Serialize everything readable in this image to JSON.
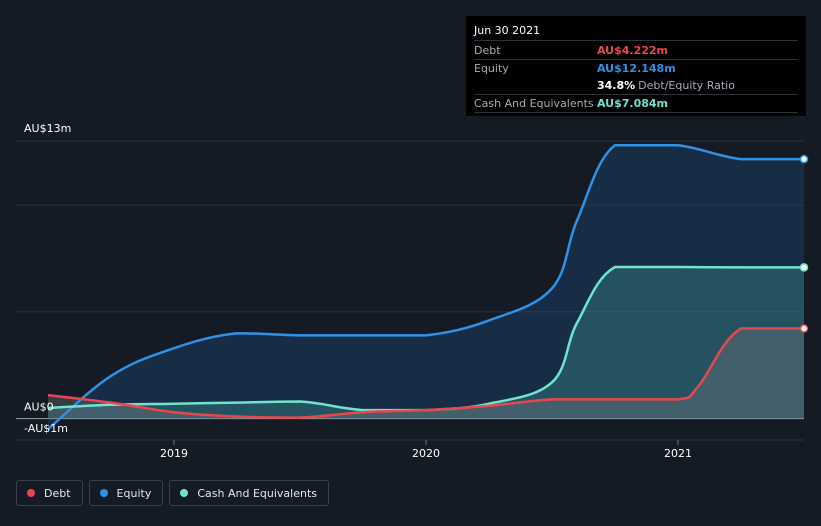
{
  "tooltip": {
    "date": "Jun 30 2021",
    "rows": [
      {
        "label": "Debt",
        "value": "AU$4.222m",
        "color": "#e8474e"
      },
      {
        "label": "Equity",
        "value": "AU$12.148m",
        "color": "#2e93e6"
      },
      {
        "label": "",
        "value": "34.8%",
        "suffix": "Debt/Equity Ratio",
        "color": "#ffffff"
      },
      {
        "label": "Cash And Equivalents",
        "value": "AU$7.084m",
        "color": "#6fe3cc"
      }
    ]
  },
  "legend": [
    {
      "label": "Debt",
      "color": "#e8474e"
    },
    {
      "label": "Equity",
      "color": "#2e93e6"
    },
    {
      "label": "Cash And Equivalents",
      "color": "#6fe3cc"
    }
  ],
  "chart_data": {
    "type": "area",
    "y_labels": [
      "AU$13m",
      "AU$0",
      "-AU$1m"
    ],
    "ylim": [
      -1,
      13
    ],
    "xlim": [
      2018.5,
      2021.5
    ],
    "x_ticks": [
      {
        "label": "2019",
        "value": 2019
      },
      {
        "label": "2020",
        "value": 2020
      },
      {
        "label": "2021",
        "value": 2021
      }
    ],
    "grid": true,
    "legend_position": "bottom-left",
    "series": [
      {
        "name": "Debt",
        "color": "#e8474e",
        "x": [
          2018.5,
          2018.75,
          2019.0,
          2019.25,
          2019.5,
          2019.75,
          2020.0,
          2020.25,
          2020.5,
          2020.75,
          2021.0,
          2021.08,
          2021.25,
          2021.5
        ],
        "y": [
          1.1,
          0.75,
          0.3,
          0.1,
          0.05,
          0.3,
          0.4,
          0.6,
          0.9,
          0.9,
          0.9,
          1.5,
          4.22,
          4.22
        ]
      },
      {
        "name": "Equity",
        "color": "#2e93e6",
        "x": [
          2018.5,
          2018.75,
          2019.0,
          2019.25,
          2019.5,
          2019.75,
          2020.0,
          2020.25,
          2020.5,
          2020.6,
          2020.75,
          2021.0,
          2021.25,
          2021.5
        ],
        "y": [
          -0.5,
          2.0,
          3.3,
          4.0,
          3.9,
          3.9,
          3.9,
          4.6,
          6.1,
          9.3,
          12.8,
          12.8,
          12.15,
          12.15
        ]
      },
      {
        "name": "Cash And Equivalents",
        "color": "#6fe3cc",
        "x": [
          2018.5,
          2018.75,
          2019.0,
          2019.25,
          2019.5,
          2019.75,
          2020.0,
          2020.25,
          2020.5,
          2020.6,
          2020.75,
          2021.0,
          2021.25,
          2021.5
        ],
        "y": [
          0.5,
          0.65,
          0.7,
          0.75,
          0.8,
          0.4,
          0.4,
          0.7,
          1.7,
          4.5,
          7.1,
          7.1,
          7.08,
          7.08
        ]
      }
    ]
  }
}
